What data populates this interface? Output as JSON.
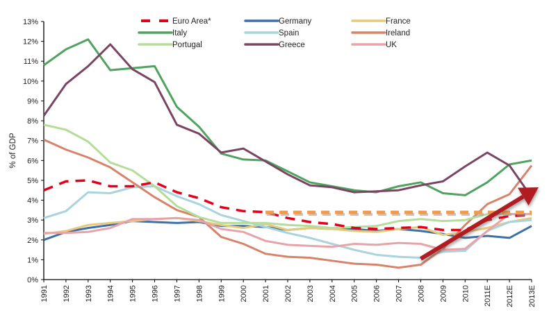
{
  "chart_data": {
    "type": "line",
    "title": "",
    "xlabel": "",
    "ylabel": "% of GDP",
    "ylim": [
      0,
      13
    ],
    "yticks": [
      "0%",
      "1%",
      "2%",
      "3%",
      "4%",
      "5%",
      "6%",
      "7%",
      "8%",
      "9%",
      "10%",
      "11%",
      "12%",
      "13%"
    ],
    "grid": false,
    "legend_position": "top-center",
    "categories": [
      "1991",
      "1992",
      "1993",
      "1994",
      "1995",
      "1996",
      "1997",
      "1998",
      "1999",
      "2000",
      "2001",
      "2002",
      "2003",
      "2004",
      "2005",
      "2006",
      "2007",
      "2008",
      "2009",
      "2010",
      "2011E",
      "2012E",
      "2013E"
    ],
    "series": [
      {
        "name": "Euro Area*",
        "color": "#e3001b",
        "dashed": true,
        "values": [
          4.5,
          4.95,
          5.0,
          4.7,
          4.7,
          4.9,
          4.4,
          4.1,
          3.65,
          3.45,
          3.4,
          3.1,
          2.9,
          2.8,
          2.6,
          2.55,
          2.6,
          2.65,
          2.5,
          2.5,
          3.0,
          3.2,
          3.25
        ]
      },
      {
        "name": "Germany",
        "color": "#3e6fa8",
        "dashed": false,
        "values": [
          2.0,
          2.4,
          2.6,
          2.75,
          2.95,
          2.9,
          2.85,
          2.9,
          2.7,
          2.7,
          2.65,
          2.5,
          2.6,
          2.55,
          2.55,
          2.45,
          2.55,
          2.45,
          2.3,
          2.1,
          2.2,
          2.1,
          2.7
        ]
      },
      {
        "name": "France",
        "color": "#e7c97c",
        "dashed": false,
        "values": [
          2.3,
          2.45,
          2.75,
          2.85,
          2.95,
          3.05,
          3.1,
          2.95,
          2.75,
          2.6,
          2.8,
          2.5,
          2.6,
          2.55,
          2.45,
          2.4,
          2.55,
          2.65,
          2.25,
          2.4,
          2.6,
          2.9,
          3.1
        ]
      },
      {
        "name": "Italy",
        "color": "#4fa35f",
        "dashed": false,
        "values": [
          10.8,
          11.6,
          12.1,
          10.55,
          10.65,
          10.75,
          8.7,
          7.7,
          6.35,
          6.05,
          6.0,
          5.45,
          4.9,
          4.7,
          4.5,
          4.4,
          4.7,
          4.9,
          4.35,
          4.25,
          4.9,
          5.8,
          6.0
        ]
      },
      {
        "name": "Spain",
        "color": "#a9d3dd",
        "dashed": false,
        "values": [
          3.1,
          3.45,
          4.4,
          4.35,
          4.65,
          4.7,
          4.2,
          3.8,
          3.25,
          2.95,
          2.65,
          2.35,
          2.1,
          1.8,
          1.5,
          1.25,
          1.15,
          1.1,
          1.4,
          1.45,
          2.45,
          2.9,
          3.0
        ]
      },
      {
        "name": "Ireland",
        "color": "#d9826a",
        "dashed": false,
        "values": [
          7.05,
          6.55,
          6.15,
          5.65,
          4.9,
          4.15,
          3.5,
          3.15,
          2.15,
          1.8,
          1.3,
          1.15,
          1.1,
          0.95,
          0.8,
          0.75,
          0.6,
          0.75,
          1.55,
          2.75,
          3.8,
          4.3,
          5.75
        ]
      },
      {
        "name": "Portugal",
        "color": "#b4dd9a",
        "dashed": false,
        "values": [
          7.8,
          7.55,
          6.95,
          5.9,
          5.5,
          4.7,
          3.7,
          3.15,
          2.85,
          2.85,
          2.85,
          2.75,
          2.7,
          2.6,
          2.65,
          2.7,
          2.95,
          3.05,
          2.95,
          3.0,
          3.3,
          3.3,
          3.3
        ]
      },
      {
        "name": "Greece",
        "color": "#7a4462",
        "dashed": false,
        "values": [
          8.25,
          9.85,
          10.75,
          11.85,
          10.6,
          9.95,
          7.8,
          7.35,
          6.4,
          6.6,
          5.95,
          5.3,
          4.75,
          4.65,
          4.4,
          4.45,
          4.5,
          4.75,
          4.95,
          5.7,
          6.4,
          5.75,
          4.15
        ]
      },
      {
        "name": "UK",
        "color": "#e8a3a8",
        "dashed": false,
        "values": [
          2.35,
          2.35,
          2.4,
          2.6,
          3.05,
          3.05,
          3.1,
          3.0,
          2.55,
          2.4,
          1.95,
          1.75,
          1.7,
          1.65,
          1.8,
          1.75,
          1.85,
          1.8,
          1.5,
          1.55,
          2.45,
          3.3,
          3.3
        ]
      }
    ],
    "annotations": [
      {
        "type": "dashed-reference-line",
        "label": "",
        "color": "#f39a4a",
        "y": 3.35,
        "x_from": "2001",
        "x_to": "2013E"
      },
      {
        "type": "trend-arrow",
        "label": "",
        "color": "#b01e24",
        "from": {
          "x": "2008",
          "y": 1.05
        },
        "to": {
          "x": "2013E",
          "y": 4.65
        }
      }
    ]
  }
}
